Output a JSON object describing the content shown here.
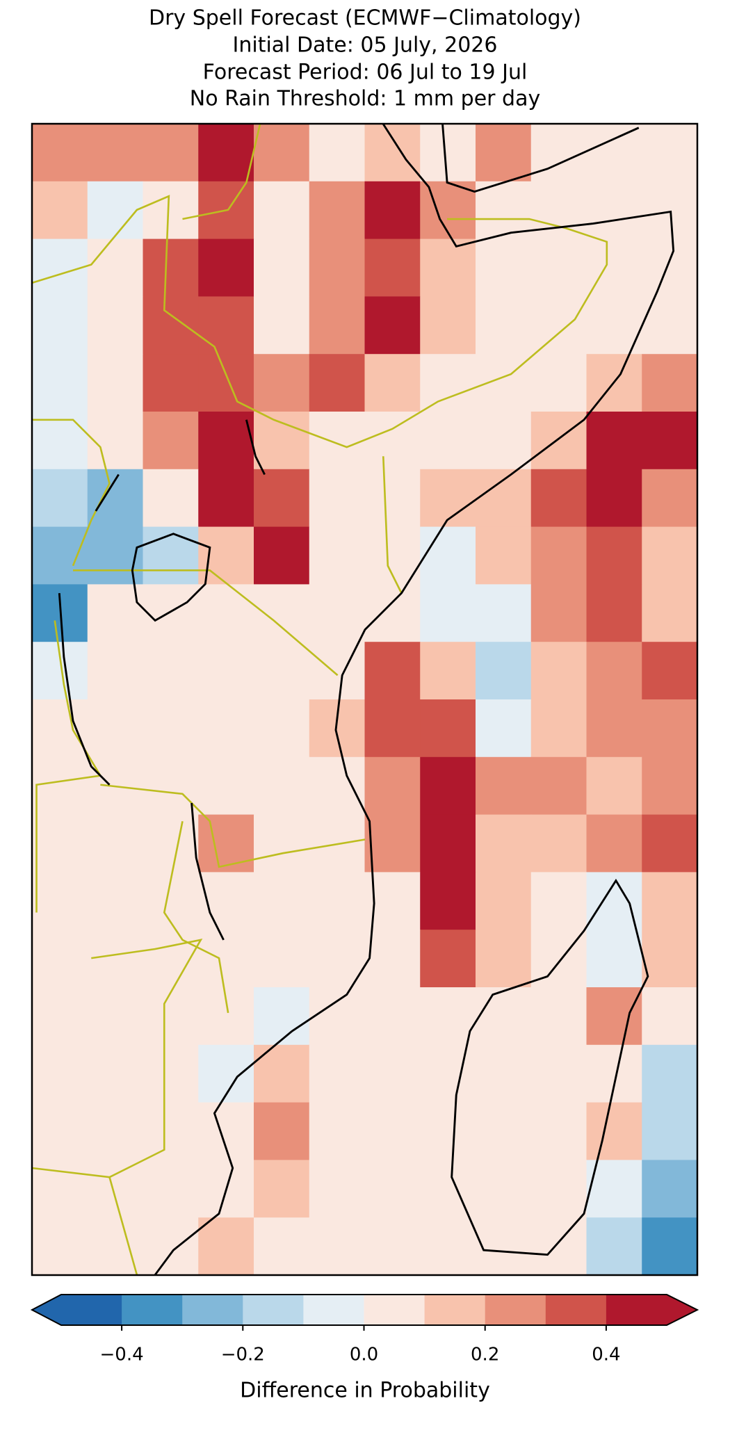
{
  "chart_data": {
    "type": "map-grid",
    "title": [
      "Dry Spell Forecast (ECMWF−Climatology)",
      "Initial Date: 05 July, 2026",
      "Forecast Period: 06 Jul to 19 Jul",
      "No Rain Threshold: 1 mm per day"
    ],
    "grid": [
      [
        0.25,
        0.25,
        0.2,
        0.4,
        0.2,
        0.05,
        0.1,
        0.05,
        0.2,
        0.05,
        0.05,
        0.05
      ],
      [
        0.15,
        -0.05,
        0.05,
        0.3,
        0.05,
        0.2,
        0.4,
        0.2,
        0.05,
        0.05,
        0.05,
        0.05
      ],
      [
        -0.05,
        0.05,
        0.3,
        0.4,
        0.05,
        0.2,
        0.35,
        0.15,
        0.05,
        0.05,
        0.05,
        0.05
      ],
      [
        -0.1,
        0.05,
        0.35,
        0.3,
        0.05,
        0.2,
        0.4,
        0.1,
        0.05,
        0.05,
        0.05,
        0.05
      ],
      [
        -0.1,
        0.05,
        0.3,
        0.35,
        0.25,
        0.3,
        0.1,
        0.05,
        0.05,
        0.05,
        0.15,
        0.2
      ],
      [
        -0.05,
        0.05,
        0.2,
        0.45,
        0.1,
        0.05,
        0.05,
        0.05,
        0.05,
        0.1,
        0.45,
        0.45
      ],
      [
        -0.15,
        -0.25,
        0.05,
        0.45,
        0.35,
        0.05,
        0.05,
        0.1,
        0.1,
        0.35,
        0.45,
        0.25
      ],
      [
        -0.3,
        -0.3,
        -0.15,
        0.1,
        0.4,
        0.05,
        0.05,
        -0.05,
        0.15,
        0.25,
        0.3,
        0.15
      ],
      [
        -0.4,
        0.05,
        0.05,
        0.05,
        0.05,
        0.05,
        0.05,
        -0.1,
        -0.05,
        0.2,
        0.3,
        0.15
      ],
      [
        -0.05,
        0.05,
        0.05,
        0.05,
        0.05,
        0.05,
        0.35,
        0.1,
        -0.15,
        0.1,
        0.2,
        0.3
      ],
      [
        0.05,
        0.05,
        0.05,
        0.05,
        0.05,
        0.15,
        0.3,
        0.3,
        -0.1,
        0.15,
        0.2,
        0.25
      ],
      [
        0.05,
        0.05,
        0.05,
        0.05,
        0.05,
        0.05,
        0.25,
        0.45,
        0.2,
        0.2,
        0.1,
        0.25
      ],
      [
        0.05,
        0.05,
        0.05,
        0.2,
        0.05,
        0.05,
        0.2,
        0.4,
        0.15,
        0.1,
        0.2,
        0.3
      ],
      [
        0.05,
        0.05,
        0.05,
        0.05,
        0.05,
        0.05,
        0.05,
        0.4,
        0.1,
        0.05,
        -0.1,
        0.15
      ],
      [
        0.05,
        0.05,
        0.05,
        0.05,
        0.05,
        0.05,
        0.05,
        0.35,
        0.1,
        0.05,
        -0.1,
        0.1
      ],
      [
        0.05,
        0.05,
        0.05,
        0.05,
        -0.05,
        0.05,
        0.05,
        0.05,
        0.05,
        0.05,
        0.2,
        0.05
      ],
      [
        0.05,
        0.05,
        0.05,
        -0.05,
        0.15,
        0.05,
        0.05,
        0.05,
        0.05,
        0.05,
        0.05,
        -0.15
      ],
      [
        0.05,
        0.05,
        0.05,
        0.05,
        0.2,
        0.05,
        0.05,
        0.05,
        0.05,
        0.05,
        0.1,
        -0.2
      ],
      [
        0.05,
        0.05,
        0.05,
        0.05,
        0.1,
        0.05,
        0.05,
        0.05,
        0.05,
        0.05,
        -0.1,
        -0.3
      ],
      [
        0.05,
        0.05,
        0.05,
        0.1,
        0.05,
        0.05,
        0.05,
        0.05,
        0.05,
        0.05,
        -0.2,
        -0.35
      ]
    ],
    "colorbar": {
      "boundaries": [
        -0.5,
        -0.4,
        -0.3,
        -0.2,
        -0.1,
        0,
        0.1,
        0.2,
        0.3,
        0.4,
        0.5
      ],
      "colors": [
        "#2166ac",
        "#4393c3",
        "#82b8d9",
        "#bad8ea",
        "#e5eef4",
        "#fae8e0",
        "#f8c3ad",
        "#e8907a",
        "#d0544b",
        "#b0182d"
      ],
      "ticks": [
        {
          "value": -0.4,
          "label": "−0.4"
        },
        {
          "value": -0.2,
          "label": "−0.2"
        },
        {
          "value": 0,
          "label": "0.0"
        },
        0.2,
        0.4
      ],
      "label": "Difference in Probability",
      "extend": "both"
    }
  }
}
